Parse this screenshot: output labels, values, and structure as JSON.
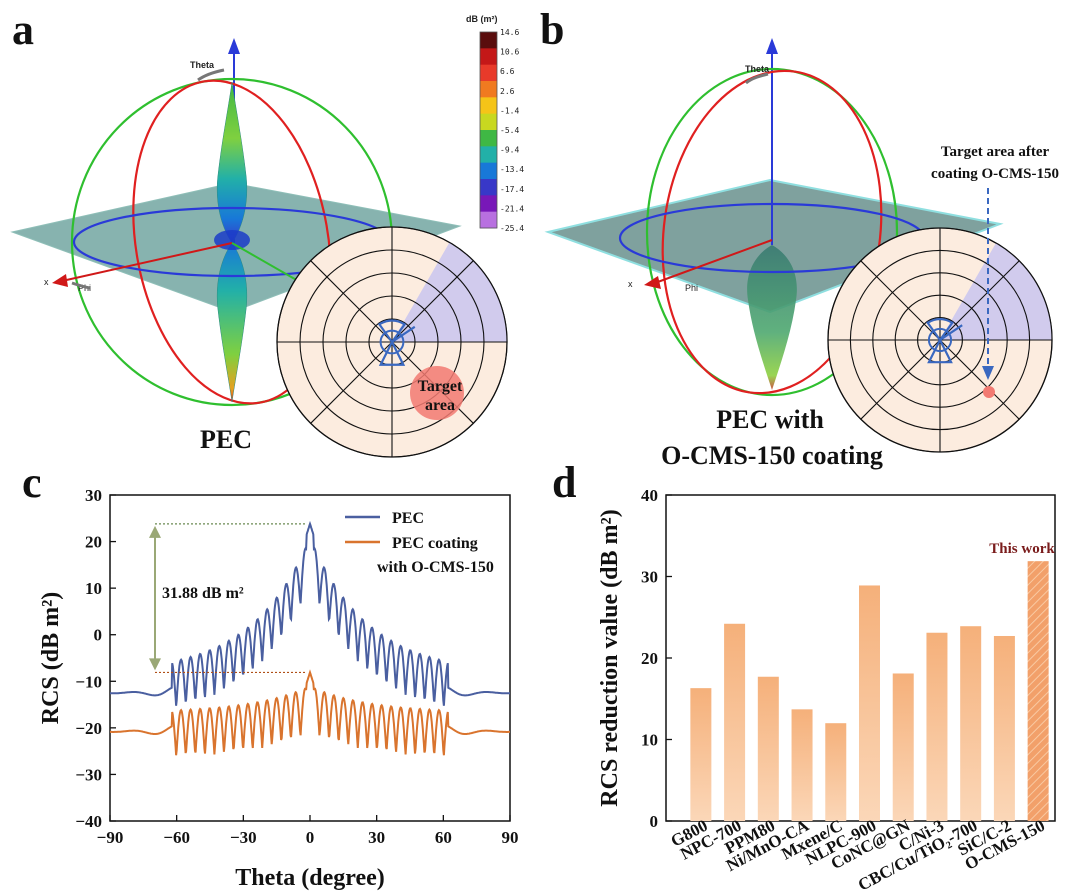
{
  "panel_a": {
    "letter": "a",
    "label": "PEC",
    "target_label_line1": "Target",
    "target_label_line2": "area",
    "axis_theta": "Theta",
    "axis_phi": "Phi",
    "axis_x": "x",
    "colorbar": {
      "title": "dB (m²)",
      "ticks": [
        "14.6",
        "10.6",
        "6.6",
        "2.6",
        "-1.4",
        "-5.4",
        "-9.4",
        "-13.4",
        "-17.4",
        "-21.4",
        "-25.4"
      ],
      "colors": [
        "#5a0d0d",
        "#c41818",
        "#e83a2a",
        "#f07a20",
        "#f5c418",
        "#c8d820",
        "#3fb844",
        "#22b0a8",
        "#1878d8",
        "#3838c8",
        "#7818b8",
        "#b870e0"
      ]
    }
  },
  "panel_b": {
    "letter": "b",
    "label_line1": "PEC with",
    "label_line2": "O-CMS-150 coating",
    "annotation_line1": "Target area after",
    "annotation_line2": "coating O-CMS-150",
    "axis_theta": "Theta",
    "axis_phi": "Phi",
    "axis_x": "x"
  },
  "colors": {
    "pec": "#4a5fa0",
    "coating": "#d9742e",
    "bar": "#f7c08f",
    "bar_highlight": "#f2a86b",
    "this_work": "#7a1c1c",
    "polar_bg": "#fcecdf",
    "polar_sector": "#c9c6f0",
    "arrow_green": "#9aa876"
  },
  "chart_data": [
    {
      "panel": "c",
      "type": "line",
      "xlabel": "Theta (degree)",
      "ylabel": "RCS (dB m²)",
      "xlim": [
        -90,
        90
      ],
      "ylim": [
        -40,
        30
      ],
      "xticks": [
        -90,
        -60,
        -30,
        0,
        30,
        60,
        90
      ],
      "yticks": [
        -40,
        -30,
        -20,
        -10,
        0,
        10,
        20,
        30
      ],
      "annotation": "31.88 dB m²",
      "annotation_top": 23.8,
      "annotation_bottom": -8.1,
      "series": [
        {
          "name": "PEC",
          "legend_line1": "PEC",
          "peak": 23.8,
          "baseline": -12.5,
          "sidelobe_spacing_deg": 4.3
        },
        {
          "name": "PEC coating with O-CMS-150",
          "legend_line1": "PEC coating",
          "legend_line2": "with O-CMS-150",
          "peak": -8.1,
          "baseline": -20.8,
          "sidelobe_spacing_deg": 4.3
        }
      ]
    },
    {
      "panel": "d",
      "type": "bar",
      "ylabel": "RCS reduction value (dB m²)",
      "ylim": [
        0,
        40
      ],
      "yticks": [
        0,
        10,
        20,
        30,
        40
      ],
      "highlight_label": "This work",
      "categories": [
        "G800",
        "NPC-700",
        "PPM80",
        "Ni/MnO-CA",
        "Mxene/C",
        "NLPC-900",
        "CoNC@GN",
        "C/Ni-3",
        "CBC/Cu/TiO₂-700",
        "SiC/C-2",
        "O-CMS-150"
      ],
      "values": [
        16.3,
        24.2,
        17.7,
        13.7,
        12.0,
        28.9,
        18.1,
        23.1,
        23.9,
        22.7,
        31.88
      ]
    }
  ]
}
